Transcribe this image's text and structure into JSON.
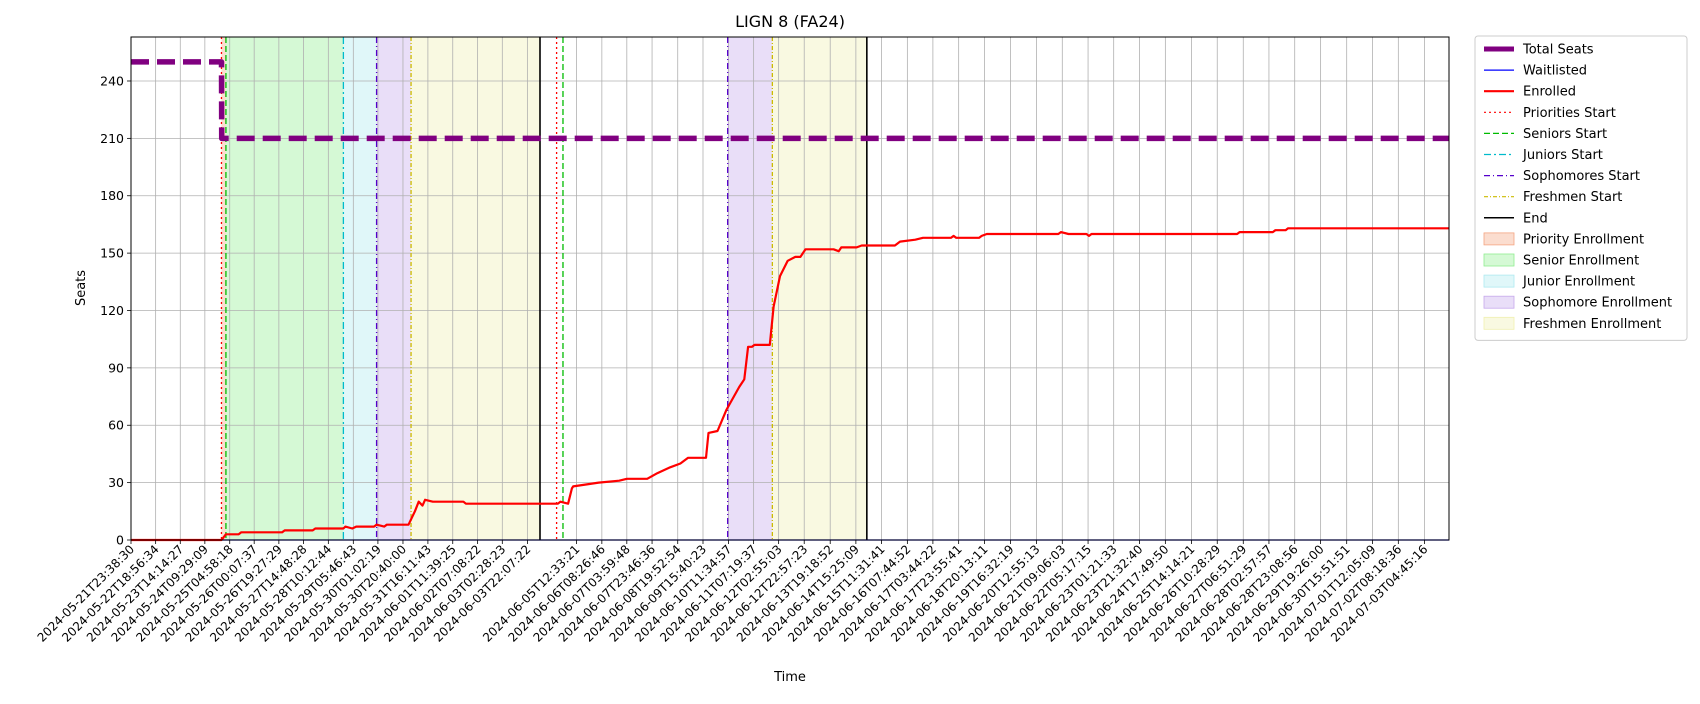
{
  "chart_data": {
    "type": "line",
    "title": "LIGN 8 (FA24)",
    "xlabel": "Time",
    "ylabel": "Seats",
    "ylim": [
      0,
      263
    ],
    "xlim": [
      "2024-05-21T23:38:30",
      "2024-07-04T00:00:00"
    ],
    "y_ticks": [
      0,
      30,
      60,
      90,
      120,
      150,
      180,
      210,
      240
    ],
    "x_ticks": [
      "2024-05-21T23:38:30",
      "2024-05-22T18:56:34",
      "2024-05-23T14:14:27",
      "2024-05-24T09:29:09",
      "2024-05-25T04:58:18",
      "2024-05-26T00:07:37",
      "2024-05-26T19:27:29",
      "2024-05-27T14:48:28",
      "2024-05-28T10:12:44",
      "2024-05-29T05:46:43",
      "2024-05-30T01:02:19",
      "2024-05-30T20:40:00",
      "2024-05-31T16:11:43",
      "2024-06-01T11:39:25",
      "2024-06-02T07:08:22",
      "2024-06-03T02:28:23",
      "2024-06-03T22:07:22",
      "2024-06-05T12:33:21",
      "2024-06-06T08:26:46",
      "2024-06-07T03:59:48",
      "2024-06-07T23:46:36",
      "2024-06-08T19:52:54",
      "2024-06-09T15:40:23",
      "2024-06-10T11:34:57",
      "2024-06-11T07:19:37",
      "2024-06-12T02:55:03",
      "2024-06-12T22:57:23",
      "2024-06-13T19:18:52",
      "2024-06-14T15:25:09",
      "2024-06-15T11:31:41",
      "2024-06-16T07:44:52",
      "2024-06-17T03:44:22",
      "2024-06-17T23:55:41",
      "2024-06-18T20:13:11",
      "2024-06-19T16:32:19",
      "2024-06-20T12:55:13",
      "2024-06-21T09:06:03",
      "2024-06-22T05:17:15",
      "2024-06-23T01:21:33",
      "2024-06-23T21:32:40",
      "2024-06-24T17:49:50",
      "2024-06-25T14:14:21",
      "2024-06-26T10:28:29",
      "2024-06-27T06:51:29",
      "2024-06-28T02:57:57",
      "2024-06-28T23:08:56",
      "2024-06-29T19:26:00",
      "2024-06-30T15:51:51",
      "2024-07-01T12:05:09",
      "2024-07-02T08:18:36",
      "2024-07-03T04:45:16"
    ],
    "grid": true,
    "legend_position": "outside-right-top",
    "series": [
      {
        "name": "Total Seats",
        "color": "#800080",
        "style": "dashed-thick",
        "points": [
          [
            "2024-05-21T23:38:30",
            250
          ],
          [
            "2024-05-24T22:30:00",
            250
          ],
          [
            "2024-05-24T22:40:00",
            210
          ],
          [
            "2024-07-04T00:00:00",
            210
          ]
        ]
      },
      {
        "name": "Waitlisted",
        "color": "#0000ff",
        "style": "solid-thin",
        "points": [
          [
            "2024-05-21T23:38:30",
            0
          ],
          [
            "2024-07-04T00:00:00",
            0
          ]
        ]
      },
      {
        "name": "Enrolled",
        "color": "#ff0000",
        "style": "solid-thick",
        "points": [
          [
            "2024-05-21T23:38:30",
            0
          ],
          [
            "2024-05-24T22:30:00",
            0
          ],
          [
            "2024-05-25T02:00:00",
            3
          ],
          [
            "2024-05-25T12:00:00",
            3
          ],
          [
            "2024-05-25T14:00:00",
            4
          ],
          [
            "2024-05-26T22:00:00",
            4
          ],
          [
            "2024-05-27T00:00:00",
            5
          ],
          [
            "2024-05-27T22:00:00",
            5
          ],
          [
            "2024-05-28T00:00:00",
            6
          ],
          [
            "2024-05-28T22:00:00",
            6
          ],
          [
            "2024-05-28T23:30:00",
            7
          ],
          [
            "2024-05-29T05:00:00",
            6
          ],
          [
            "2024-05-29T08:00:00",
            7
          ],
          [
            "2024-05-29T22:00:00",
            7
          ],
          [
            "2024-05-30T00:00:00",
            8
          ],
          [
            "2024-05-30T06:00:00",
            7
          ],
          [
            "2024-05-30T08:00:00",
            8
          ],
          [
            "2024-05-31T01:00:00",
            8
          ],
          [
            "2024-05-31T06:00:00",
            15
          ],
          [
            "2024-05-31T09:00:00",
            20
          ],
          [
            "2024-05-31T12:00:00",
            18
          ],
          [
            "2024-05-31T14:00:00",
            21
          ],
          [
            "2024-05-31T20:00:00",
            20
          ],
          [
            "2024-06-01T20:00:00",
            20
          ],
          [
            "2024-06-01T22:00:00",
            19
          ],
          [
            "2024-06-04T22:00:00",
            19
          ],
          [
            "2024-06-05T00:00:00",
            20
          ],
          [
            "2024-06-05T06:00:00",
            19
          ],
          [
            "2024-06-05T09:00:00",
            27
          ],
          [
            "2024-06-05T10:00:00",
            28
          ],
          [
            "2024-06-05T20:00:00",
            29
          ],
          [
            "2024-06-06T06:00:00",
            30
          ],
          [
            "2024-06-06T22:00:00",
            31
          ],
          [
            "2024-06-07T04:00:00",
            32
          ],
          [
            "2024-06-07T20:00:00",
            32
          ],
          [
            "2024-06-08T04:00:00",
            35
          ],
          [
            "2024-06-08T14:00:00",
            38
          ],
          [
            "2024-06-08T22:00:00",
            40
          ],
          [
            "2024-06-09T04:00:00",
            43
          ],
          [
            "2024-06-09T18:00:00",
            43
          ],
          [
            "2024-06-09T20:00:00",
            56
          ],
          [
            "2024-06-10T03:00:00",
            57
          ],
          [
            "2024-06-10T10:00:00",
            68
          ],
          [
            "2024-06-10T20:00:00",
            80
          ],
          [
            "2024-06-11T00:00:00",
            84
          ],
          [
            "2024-06-11T03:00:00",
            101
          ],
          [
            "2024-06-11T06:00:00",
            101
          ],
          [
            "2024-06-11T08:00:00",
            102
          ],
          [
            "2024-06-11T20:00:00",
            102
          ],
          [
            "2024-06-11T23:00:00",
            122
          ],
          [
            "2024-06-12T04:00:00",
            138
          ],
          [
            "2024-06-12T10:00:00",
            146
          ],
          [
            "2024-06-12T16:00:00",
            148
          ],
          [
            "2024-06-12T20:00:00",
            148
          ],
          [
            "2024-06-13T00:00:00",
            152
          ],
          [
            "2024-06-13T22:00:00",
            152
          ],
          [
            "2024-06-14T02:00:00",
            151
          ],
          [
            "2024-06-14T04:00:00",
            153
          ],
          [
            "2024-06-14T16:00:00",
            153
          ],
          [
            "2024-06-14T20:00:00",
            154
          ],
          [
            "2024-06-15T22:00:00",
            154
          ],
          [
            "2024-06-16T02:00:00",
            156
          ],
          [
            "2024-06-16T14:00:00",
            157
          ],
          [
            "2024-06-16T20:00:00",
            158
          ],
          [
            "2024-06-17T18:00:00",
            158
          ],
          [
            "2024-06-17T20:00:00",
            159
          ],
          [
            "2024-06-17T22:00:00",
            158
          ],
          [
            "2024-06-18T16:00:00",
            158
          ],
          [
            "2024-06-18T18:00:00",
            159
          ],
          [
            "2024-06-18T22:00:00",
            160
          ],
          [
            "2024-06-21T06:00:00",
            160
          ],
          [
            "2024-06-21T08:00:00",
            161
          ],
          [
            "2024-06-21T14:00:00",
            160
          ],
          [
            "2024-06-22T04:00:00",
            160
          ],
          [
            "2024-06-22T06:00:00",
            159
          ],
          [
            "2024-06-22T08:00:00",
            160
          ],
          [
            "2024-06-27T02:00:00",
            160
          ],
          [
            "2024-06-27T04:00:00",
            161
          ],
          [
            "2024-06-28T06:00:00",
            161
          ],
          [
            "2024-06-28T08:00:00",
            162
          ],
          [
            "2024-06-28T16:00:00",
            162
          ],
          [
            "2024-06-28T18:00:00",
            163
          ],
          [
            "2024-07-04T00:00:00",
            163
          ]
        ]
      }
    ],
    "phases": [
      {
        "name": "Priority Enrollment",
        "color": "#f4a582",
        "start": "2024-05-24T22:30:00",
        "end": "2024-05-25T02:00:00"
      },
      {
        "name": "Senior Enrollment",
        "color": "#90ee90",
        "start": "2024-05-25T02:00:00",
        "end": "2024-05-28T22:00:00"
      },
      {
        "name": "Junior Enrollment",
        "color": "#aeeaf0",
        "start": "2024-05-28T22:00:00",
        "end": "2024-05-30T00:00:00"
      },
      {
        "name": "Sophomore Enrollment",
        "color": "#c6a8ec",
        "start": "2024-05-30T00:00:00",
        "end": "2024-05-31T03:00:00"
      },
      {
        "name": "Freshmen Enrollment",
        "color": "#f0f0b0",
        "start": "2024-05-31T03:00:00",
        "end": "2024-06-04T08:00:00"
      },
      {
        "name": "Sophomore Enrollment",
        "color": "#c6a8ec",
        "start": "2024-06-10T11:00:00",
        "end": "2024-06-11T22:00:00"
      },
      {
        "name": "Freshmen Enrollment",
        "color": "#f0f0b0",
        "start": "2024-06-11T22:00:00",
        "end": "2024-06-15T00:00:00"
      }
    ],
    "markers": [
      {
        "name": "Priorities Start",
        "color": "#ff0000",
        "dash": "2,3",
        "times": [
          "2024-05-24T22:30:00",
          "2024-06-04T21:00:00"
        ]
      },
      {
        "name": "Seniors Start",
        "color": "#00bb00",
        "dash": "6,3",
        "times": [
          "2024-05-25T02:00:00",
          "2024-06-05T02:00:00"
        ]
      },
      {
        "name": "Juniors Start",
        "color": "#00bbcc",
        "dash": "7,3,2,3",
        "times": [
          "2024-05-28T22:00:00"
        ]
      },
      {
        "name": "Sophomores Start",
        "color": "#5500cc",
        "dash": "6,3,1,3",
        "times": [
          "2024-05-30T00:00:00",
          "2024-06-10T11:00:00"
        ]
      },
      {
        "name": "Freshmen Start",
        "color": "#ccbb00",
        "dash": "4,2,1,2",
        "times": [
          "2024-05-31T03:00:00",
          "2024-06-11T22:00:00"
        ]
      },
      {
        "name": "End",
        "color": "#000000",
        "dash": "",
        "times": [
          "2024-06-04T08:00:00",
          "2024-06-15T00:00:00"
        ]
      }
    ],
    "legend": [
      {
        "label": "Total Seats",
        "kind": "line",
        "color": "#800080",
        "width": 5,
        "dash": ""
      },
      {
        "label": "Waitlisted",
        "kind": "line",
        "color": "#0000ff",
        "width": 1.2,
        "dash": ""
      },
      {
        "label": "Enrolled",
        "kind": "line",
        "color": "#ff0000",
        "width": 2.2,
        "dash": ""
      },
      {
        "label": "Priorities Start",
        "kind": "line",
        "color": "#ff0000",
        "width": 1.2,
        "dash": "2,3"
      },
      {
        "label": "Seniors Start",
        "kind": "line",
        "color": "#00bb00",
        "width": 1.2,
        "dash": "6,3"
      },
      {
        "label": "Juniors Start",
        "kind": "line",
        "color": "#00bbcc",
        "width": 1.2,
        "dash": "7,3,2,3"
      },
      {
        "label": "Sophomores Start",
        "kind": "line",
        "color": "#5500cc",
        "width": 1.2,
        "dash": "6,3,1,3"
      },
      {
        "label": "Freshmen Start",
        "kind": "line",
        "color": "#ccbb00",
        "width": 1.2,
        "dash": "4,2,1,2"
      },
      {
        "label": "End",
        "kind": "line",
        "color": "#000000",
        "width": 1.5,
        "dash": ""
      },
      {
        "label": "Priority Enrollment",
        "kind": "patch",
        "color": "#f4a582"
      },
      {
        "label": "Senior Enrollment",
        "kind": "patch",
        "color": "#90ee90"
      },
      {
        "label": "Junior Enrollment",
        "kind": "patch",
        "color": "#aeeaf0"
      },
      {
        "label": "Sophomore Enrollment",
        "kind": "patch",
        "color": "#c6a8ec"
      },
      {
        "label": "Freshmen Enrollment",
        "kind": "patch",
        "color": "#f0f0b0"
      }
    ]
  }
}
